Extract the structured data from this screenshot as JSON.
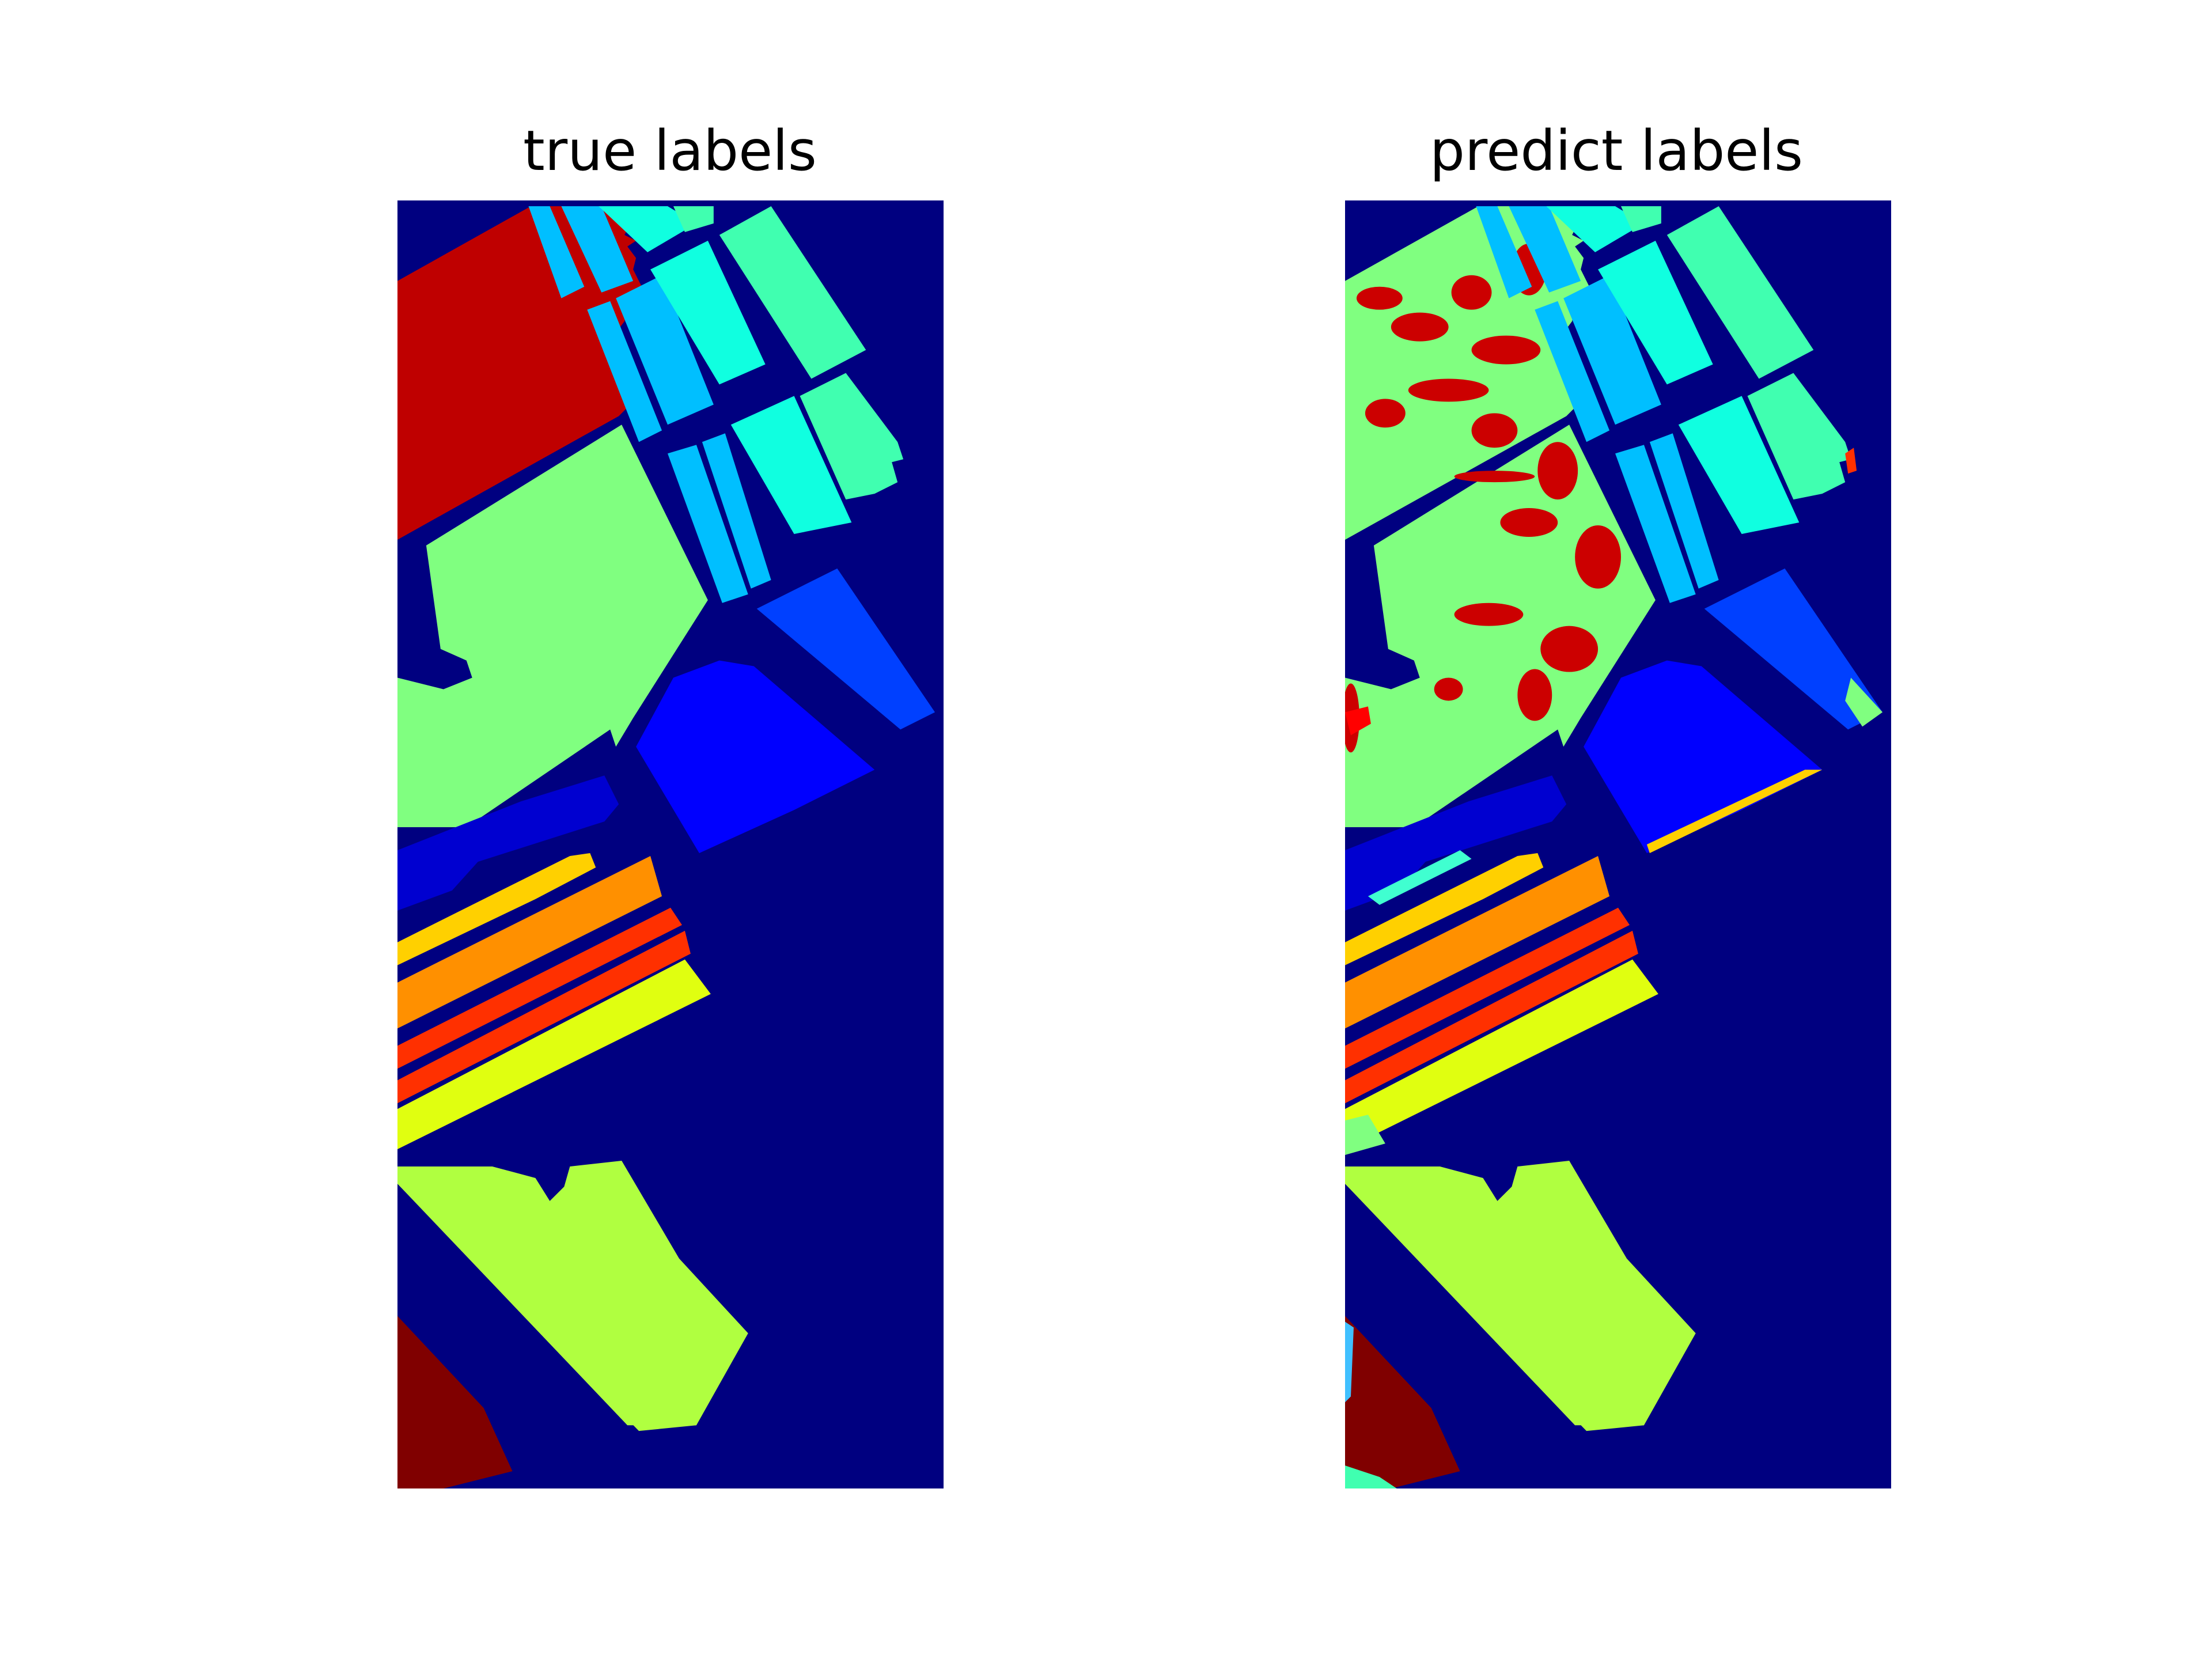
{
  "figure": {
    "panels": [
      {
        "title": "true labels"
      },
      {
        "title": "predict labels"
      }
    ]
  },
  "chart_data": [
    {
      "type": "heatmap",
      "title": "true labels",
      "colormap": "jet",
      "background_color": "#000080",
      "regions": [
        {
          "name": "red-field-top",
          "color": "#bf0000"
        },
        {
          "name": "light-green-field",
          "color": "#80ff80"
        },
        {
          "name": "light-blue-strips",
          "color": "#00bfff"
        },
        {
          "name": "cyan-blocks",
          "color": "#10ffe0"
        },
        {
          "name": "teal-green-blocks",
          "color": "#40ffb0"
        },
        {
          "name": "blue-block-right",
          "color": "#0040ff"
        },
        {
          "name": "pure-blue-block",
          "color": "#0000ff"
        },
        {
          "name": "medium-blue-band",
          "color": "#0000d0"
        },
        {
          "name": "yellow-band",
          "color": "#ffd000"
        },
        {
          "name": "orange-band",
          "color": "#ff9000"
        },
        {
          "name": "red-orange-band",
          "color": "#ff3000"
        },
        {
          "name": "yellow-green-band",
          "color": "#e0ff10"
        },
        {
          "name": "lime-field",
          "color": "#b0ff40"
        },
        {
          "name": "dark-red-corner",
          "color": "#800000"
        }
      ]
    },
    {
      "type": "heatmap",
      "title": "predict labels",
      "colormap": "jet",
      "background_color": "#000080",
      "regions": [
        {
          "name": "red-field-top",
          "color": "#bf0000"
        },
        {
          "name": "light-green-field",
          "color": "#80ff80"
        },
        {
          "name": "light-blue-strips",
          "color": "#00bfff"
        },
        {
          "name": "cyan-blocks",
          "color": "#10ffe0"
        },
        {
          "name": "teal-green-blocks",
          "color": "#40ffb0"
        },
        {
          "name": "blue-block-right",
          "color": "#0040ff"
        },
        {
          "name": "pure-blue-block",
          "color": "#0000ff"
        },
        {
          "name": "medium-blue-band",
          "color": "#0000d0"
        },
        {
          "name": "yellow-band",
          "color": "#ffd000"
        },
        {
          "name": "orange-band",
          "color": "#ff9000"
        },
        {
          "name": "red-orange-band",
          "color": "#ff3000"
        },
        {
          "name": "yellow-green-band",
          "color": "#e0ff10"
        },
        {
          "name": "lime-field",
          "color": "#b0ff40"
        },
        {
          "name": "dark-red-corner",
          "color": "#800000"
        }
      ]
    }
  ]
}
